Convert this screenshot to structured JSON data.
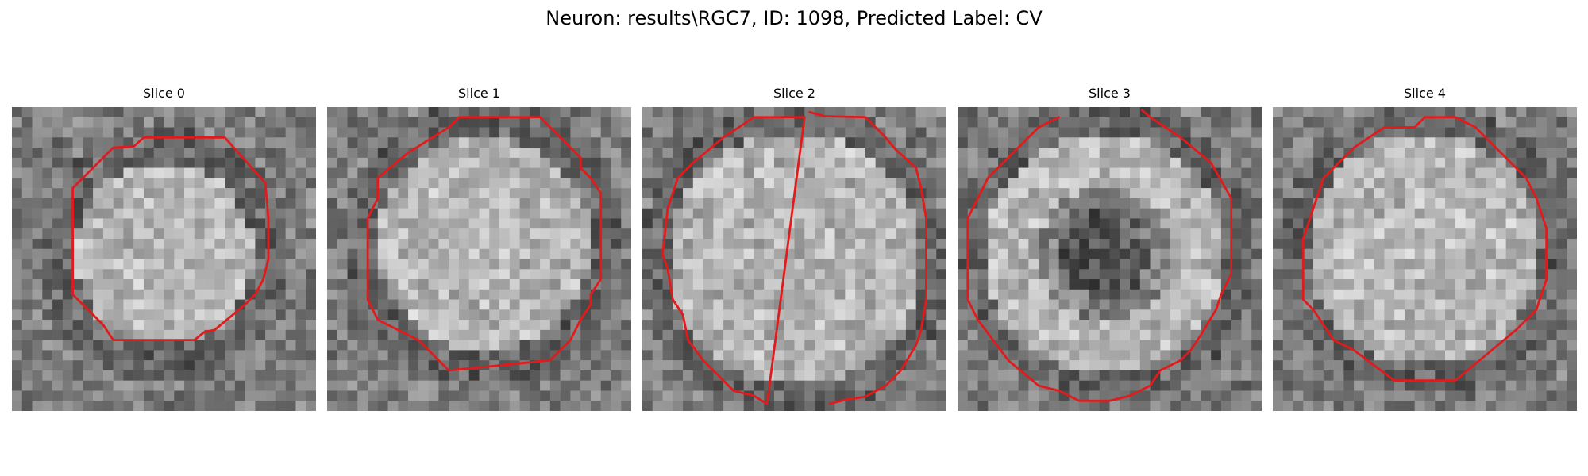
{
  "figure": {
    "title": "Neuron: results\\RGC7, ID: 1098, Predicted Label: CV"
  },
  "panels": [
    {
      "title": "Slice 0",
      "contour_color": "#e31a1c"
    },
    {
      "title": "Slice 1",
      "contour_color": "#e31a1c"
    },
    {
      "title": "Slice 2",
      "contour_color": "#e31a1c"
    },
    {
      "title": "Slice 3",
      "contour_color": "#e31a1c"
    },
    {
      "title": "Slice 4",
      "contour_color": "#e31a1c"
    }
  ]
}
